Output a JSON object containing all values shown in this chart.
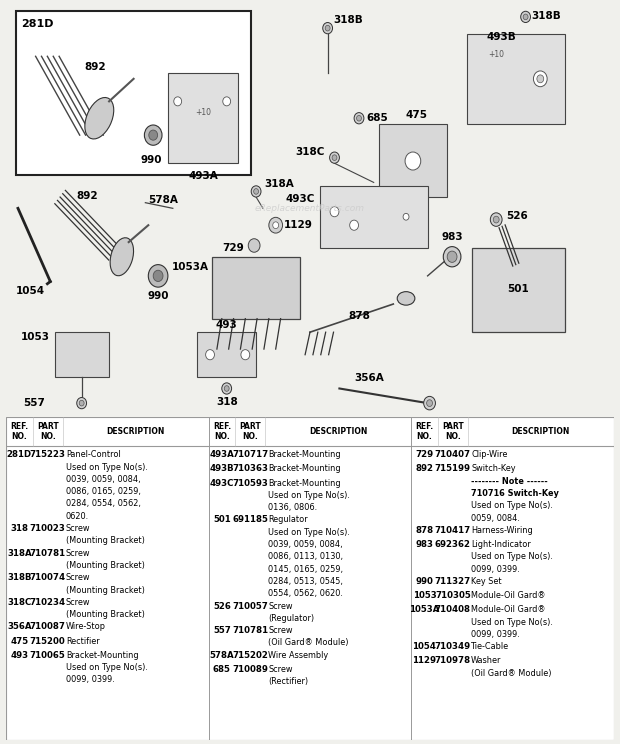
{
  "bg_color": "#f0f0ec",
  "diagram_bg": "#f0f0ec",
  "table_bg": "#ffffff",
  "watermark": "eReplacementParts.com",
  "parts_col1": [
    [
      "281D",
      "715223",
      [
        "Panel-Control",
        "Used on Type No(s).",
        "0039, 0059, 0084,",
        "0086, 0165, 0259,",
        "0284, 0554, 0562,",
        "0620."
      ]
    ],
    [
      "318",
      "710023",
      [
        "Screw",
        "(Mounting Bracket)"
      ]
    ],
    [
      "318A",
      "710781",
      [
        "Screw",
        "(Mounting Bracket)"
      ]
    ],
    [
      "318B",
      "710074",
      [
        "Screw",
        "(Mounting Bracket)"
      ]
    ],
    [
      "318C",
      "710234",
      [
        "Screw",
        "(Mounting Bracket)"
      ]
    ],
    [
      "356A",
      "710087",
      [
        "Wire-Stop"
      ]
    ],
    [
      "475",
      "715200",
      [
        "Rectifier"
      ]
    ],
    [
      "493",
      "710065",
      [
        "Bracket-Mounting",
        "Used on Type No(s).",
        "0099, 0399."
      ]
    ]
  ],
  "parts_col2": [
    [
      "493A",
      "710717",
      [
        "Bracket-Mounting"
      ]
    ],
    [
      "493B",
      "710363",
      [
        "Bracket-Mounting"
      ]
    ],
    [
      "493C",
      "710593",
      [
        "Bracket-Mounting",
        "Used on Type No(s).",
        "0136, 0806."
      ]
    ],
    [
      "501",
      "691185",
      [
        "Regulator",
        "Used on Type No(s).",
        "0039, 0059, 0084,",
        "0086, 0113, 0130,",
        "0145, 0165, 0259,",
        "0284, 0513, 0545,",
        "0554, 0562, 0620."
      ]
    ],
    [
      "526",
      "710057",
      [
        "Screw",
        "(Regulator)"
      ]
    ],
    [
      "557",
      "710781",
      [
        "Screw",
        "(Oil Gard® Module)"
      ]
    ],
    [
      "578A",
      "715202",
      [
        "Wire Assembly"
      ]
    ],
    [
      "685",
      "710089",
      [
        "Screw",
        "(Rectifier)"
      ]
    ]
  ],
  "parts_col3": [
    [
      "729",
      "710407",
      [
        "Clip-Wire"
      ]
    ],
    [
      "892",
      "715199",
      [
        "Switch-Key",
        "-------- Note ------",
        "710716 Switch-Key",
        "Used on Type No(s).",
        "0059, 0084."
      ]
    ],
    [
      "878",
      "710417",
      [
        "Harness-Wiring"
      ]
    ],
    [
      "983",
      "692362",
      [
        "Light-Indicator",
        "Used on Type No(s).",
        "0099, 0399."
      ]
    ],
    [
      "990",
      "711327",
      [
        "Key Set"
      ]
    ],
    [
      "1053",
      "710305",
      [
        "Module-Oil Gard®"
      ]
    ],
    [
      "1053A",
      "710408",
      [
        "Module-Oil Gard®",
        "Used on Type No(s).",
        "0099, 0399."
      ]
    ],
    [
      "1054",
      "710349",
      [
        "Tie-Cable"
      ]
    ],
    [
      "1129",
      "710978",
      [
        "Washer",
        "(Oil Gard® Module)"
      ]
    ]
  ]
}
